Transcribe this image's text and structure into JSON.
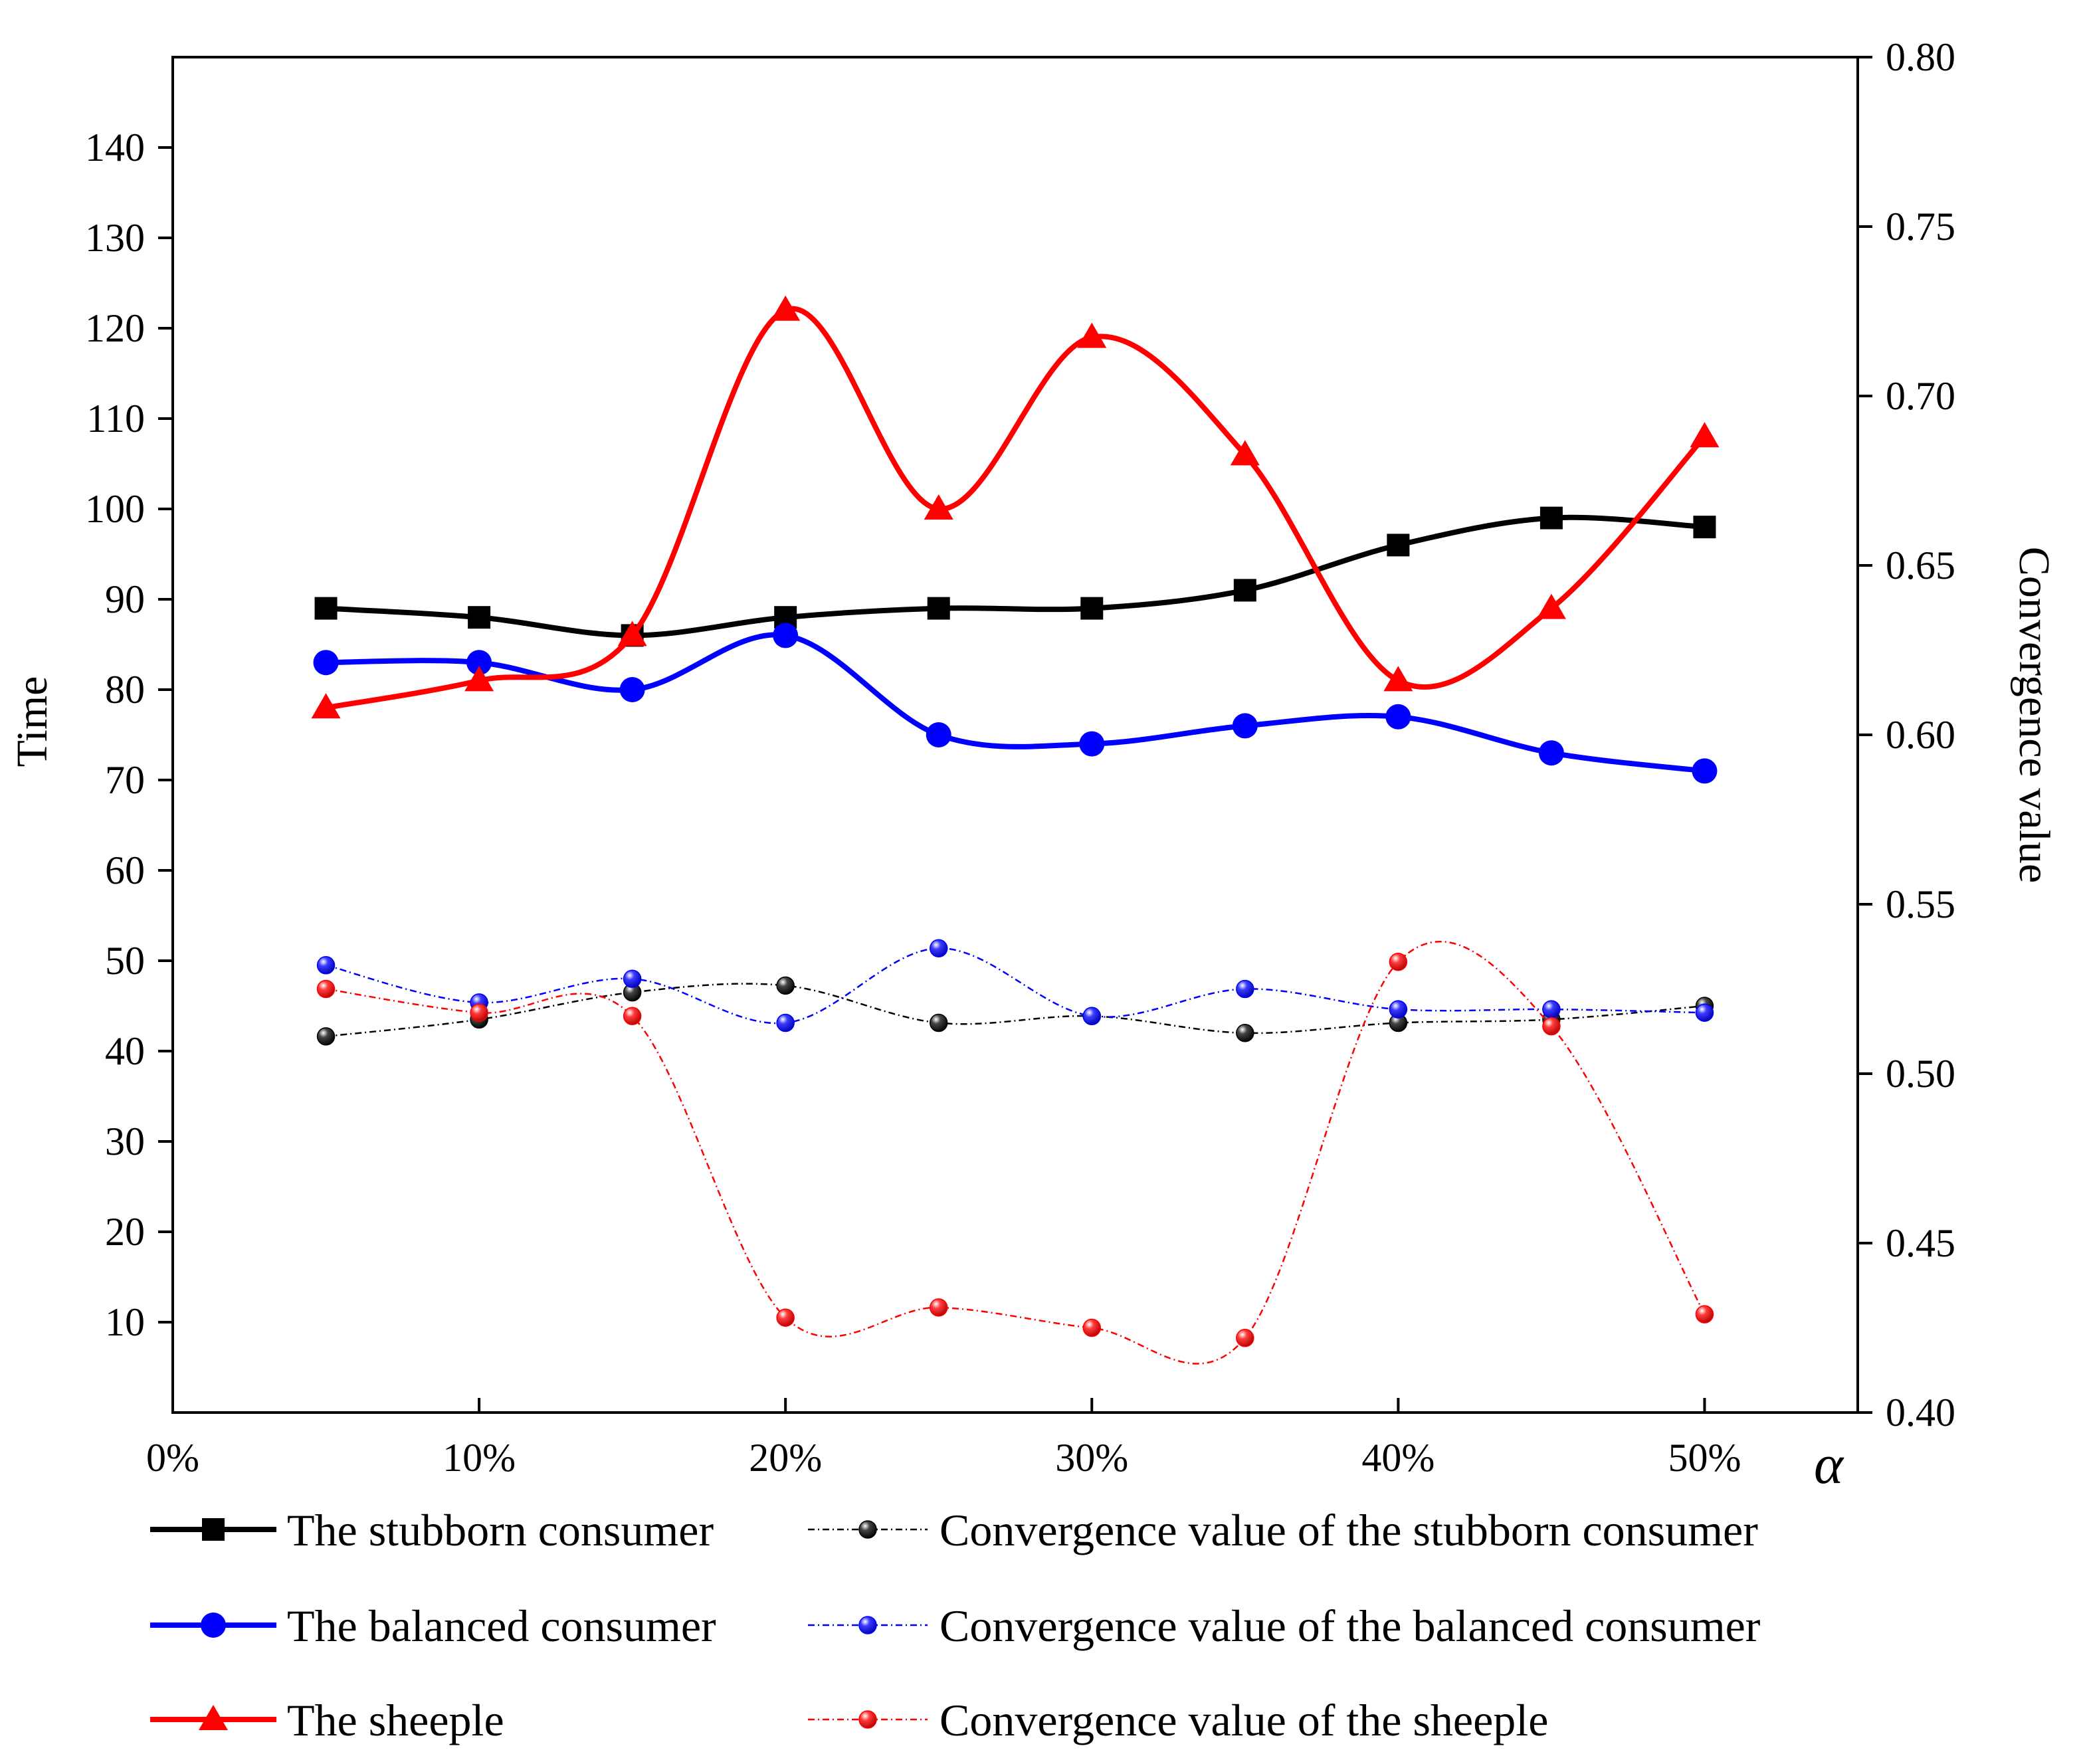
{
  "chart_data": {
    "type": "line",
    "x_label": "α",
    "y_left_label": "Time",
    "y_right_label": "Convergence value",
    "x_ticks": [
      "0%",
      "10%",
      "20%",
      "30%",
      "40%",
      "50%"
    ],
    "x_range": [
      0,
      55
    ],
    "y_left_ticks": [
      "10",
      "20",
      "30",
      "40",
      "50",
      "60",
      "70",
      "80",
      "90",
      "100",
      "110",
      "120",
      "130",
      "140"
    ],
    "y_left_range": [
      0,
      150
    ],
    "y_right_ticks": [
      "0.40",
      "0.45",
      "0.50",
      "0.55",
      "0.60",
      "0.65",
      "0.70",
      "0.75",
      "0.80"
    ],
    "y_right_range": [
      0.4,
      0.8
    ],
    "x": [
      5,
      10,
      15,
      20,
      25,
      30,
      35,
      40,
      45,
      50
    ],
    "series": [
      {
        "name": "The stubborn consumer",
        "axis": "left",
        "color": "#000000",
        "marker": "square",
        "style": "solid",
        "values": [
          89,
          88,
          86,
          88,
          89,
          89,
          91,
          96,
          99,
          98
        ]
      },
      {
        "name": "The balanced consumer",
        "axis": "left",
        "color": "#0000ff",
        "marker": "circle",
        "style": "solid",
        "values": [
          83,
          83,
          80,
          86,
          75,
          74,
          76,
          77,
          73,
          71
        ]
      },
      {
        "name": "The sheeple",
        "axis": "left",
        "color": "#ff0000",
        "marker": "triangle",
        "style": "solid",
        "values": [
          78,
          81,
          86,
          122,
          100,
          119,
          106,
          81,
          89,
          108
        ]
      },
      {
        "name": "Convergence value of the stubborn consumer",
        "axis": "right",
        "color": "#000000",
        "marker": "ball",
        "style": "dashdot",
        "values": [
          0.511,
          0.516,
          0.524,
          0.526,
          0.515,
          0.517,
          0.512,
          0.515,
          0.516,
          0.52
        ]
      },
      {
        "name": "Convergence value of the balanced consumer",
        "axis": "right",
        "color": "#0000ff",
        "marker": "ball",
        "style": "dashdot",
        "values": [
          0.532,
          0.521,
          0.528,
          0.515,
          0.537,
          0.517,
          0.525,
          0.519,
          0.519,
          0.518
        ]
      },
      {
        "name": "Convergence value of the sheeple",
        "axis": "right",
        "color": "#ff0000",
        "marker": "ball",
        "style": "dashdot",
        "values": [
          0.525,
          0.518,
          0.517,
          0.428,
          0.431,
          0.425,
          0.422,
          0.533,
          0.514,
          0.429
        ]
      }
    ]
  }
}
